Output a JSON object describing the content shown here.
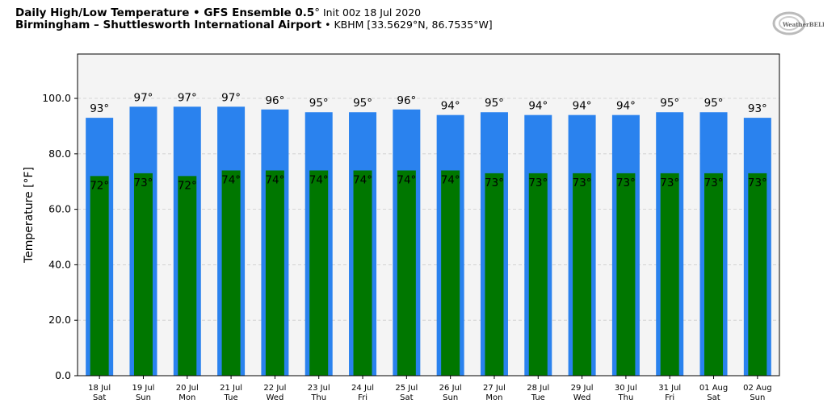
{
  "header": {
    "title_bold": "Daily High/Low Temperature • GFS Ensemble 0.5",
    "title_deg": "°",
    "title_rest": " Init 00z 18 Jul 2020",
    "station_bold": "Birmingham – Shuttlesworth International Airport",
    "station_rest": " • KBHM [33.5629°N, 86.7535°W]"
  },
  "logo_text": "WeatherBELL",
  "chart_data": {
    "type": "bar",
    "ylabel": "Temperature [°F]",
    "ylim": [
      0,
      116
    ],
    "yticks": [
      0,
      20,
      40,
      60,
      80,
      100
    ],
    "grid": true,
    "categories": [
      "18 Jul",
      "19 Jul",
      "20 Jul",
      "21 Jul",
      "22 Jul",
      "23 Jul",
      "24 Jul",
      "25 Jul",
      "26 Jul",
      "27 Jul",
      "28 Jul",
      "29 Jul",
      "30 Jul",
      "31 Jul",
      "01 Aug",
      "02 Aug"
    ],
    "weekdays": [
      "Sat",
      "Sun",
      "Mon",
      "Tue",
      "Wed",
      "Thu",
      "Fri",
      "Sat",
      "Sun",
      "Mon",
      "Tue",
      "Wed",
      "Thu",
      "Fri",
      "Sat",
      "Sun"
    ],
    "series": [
      {
        "name": "High",
        "color": "#2a82ee",
        "values": [
          93,
          97,
          97,
          97,
          96,
          95,
          95,
          96,
          94,
          95,
          94,
          94,
          94,
          95,
          95,
          93
        ]
      },
      {
        "name": "Low",
        "color": "#007700",
        "values": [
          72,
          73,
          72,
          74,
          74,
          74,
          74,
          74,
          74,
          73,
          73,
          73,
          73,
          73,
          73,
          73
        ]
      }
    ]
  }
}
